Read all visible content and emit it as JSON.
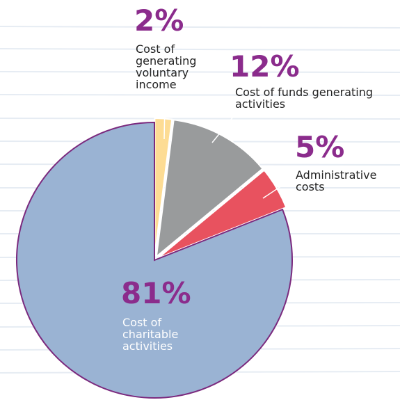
{
  "chart_data": {
    "type": "pie",
    "categories": [
      "Cost of generating voluntary income",
      "Cost of funds generating activities",
      "Administrative costs",
      "Cost of charitable activities"
    ],
    "values": [
      2,
      12,
      5,
      81
    ],
    "value_labels": [
      "2%",
      "12%",
      "5%",
      "81%"
    ],
    "colors": [
      "#fddc94",
      "#999b9c",
      "#e8525f",
      "#9ab3d3"
    ]
  }
}
